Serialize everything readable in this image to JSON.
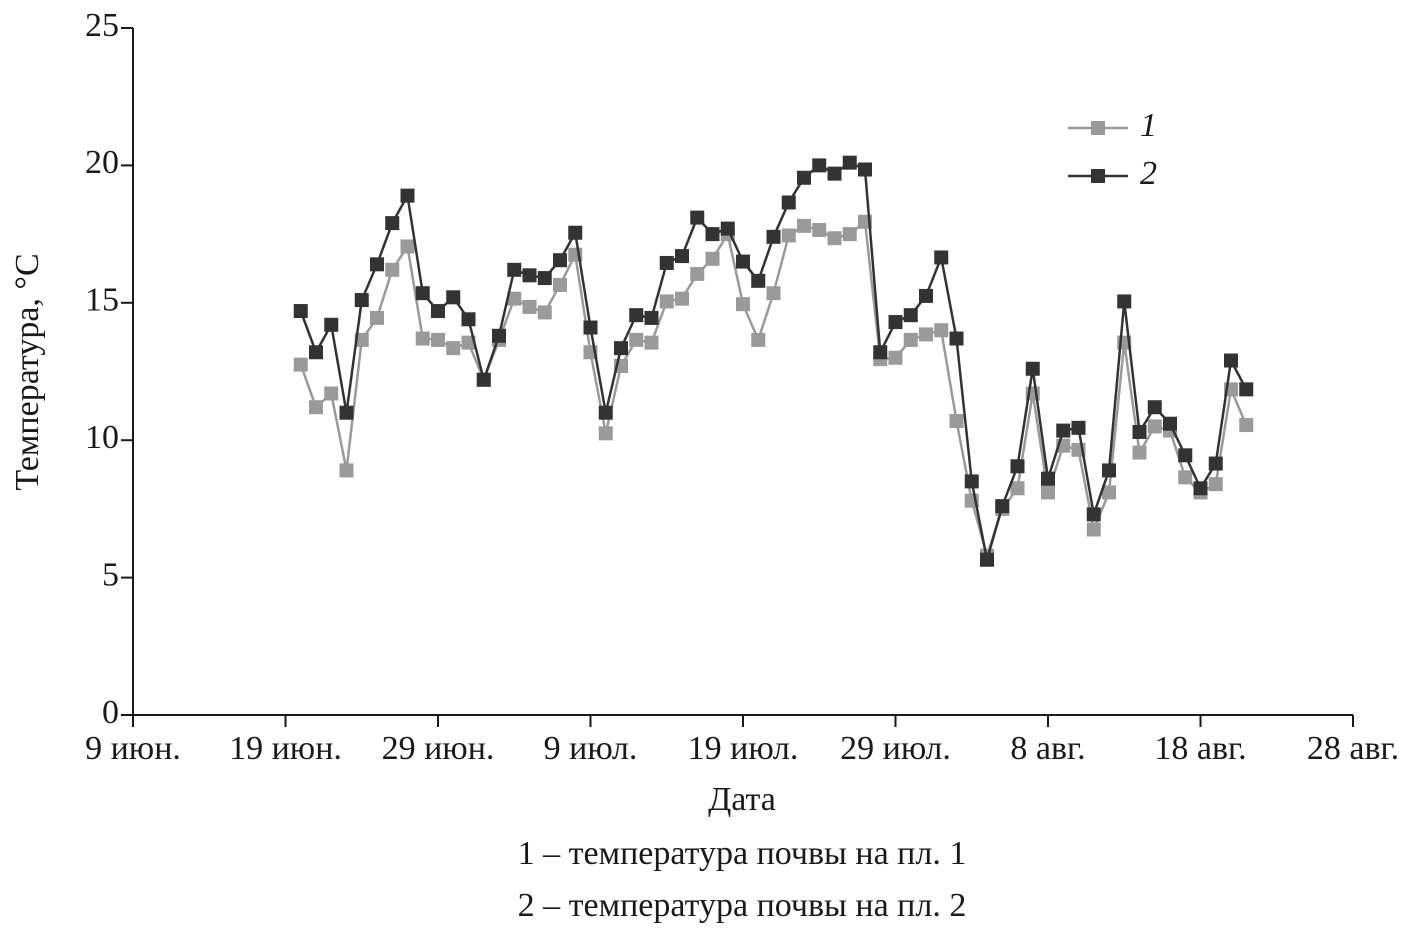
{
  "chart_data": {
    "type": "line",
    "xlabel": "Дата",
    "ylabel": "Температура, °C",
    "x": [
      11,
      12,
      13,
      14,
      15,
      16,
      17,
      18,
      19,
      20,
      21,
      22,
      23,
      24,
      25,
      26,
      27,
      28,
      29,
      30,
      31,
      32,
      33,
      34,
      35,
      36,
      37,
      38,
      39,
      40,
      41,
      42,
      43,
      44,
      45,
      46,
      47,
      48,
      49,
      50,
      51,
      52,
      53,
      54,
      55,
      56,
      57,
      58,
      59,
      60,
      61,
      62,
      63,
      64,
      65,
      66,
      67,
      68,
      69,
      70,
      71,
      72,
      73
    ],
    "series": [
      {
        "name": "1",
        "color": "#9a9a9a",
        "values": [
          12.75,
          11.2,
          11.7,
          8.9,
          13.65,
          14.45,
          16.2,
          17.05,
          13.7,
          13.65,
          13.35,
          13.55,
          12.2,
          13.65,
          15.15,
          14.85,
          14.65,
          15.65,
          16.75,
          13.2,
          10.25,
          12.7,
          13.65,
          13.55,
          15.05,
          15.15,
          16.05,
          16.6,
          17.5,
          14.95,
          13.65,
          15.35,
          17.45,
          17.8,
          17.65,
          17.35,
          17.5,
          17.95,
          12.95,
          13.0,
          13.65,
          13.85,
          14.0,
          10.7,
          7.8,
          5.8,
          7.5,
          8.25,
          11.7,
          8.1,
          9.8,
          9.65,
          6.75,
          8.1,
          13.55,
          9.55,
          10.5,
          10.35,
          8.65,
          8.1,
          8.4,
          11.85,
          10.55
        ]
      },
      {
        "name": "2",
        "color": "#333333",
        "values": [
          14.7,
          13.2,
          14.2,
          11.0,
          15.1,
          16.4,
          17.9,
          18.9,
          15.35,
          14.7,
          15.2,
          14.4,
          12.2,
          13.8,
          16.2,
          16.0,
          15.9,
          16.55,
          17.55,
          14.1,
          11.0,
          13.35,
          14.55,
          14.45,
          16.45,
          16.7,
          18.1,
          17.5,
          17.7,
          16.5,
          15.8,
          17.4,
          18.65,
          19.55,
          20.0,
          19.7,
          20.1,
          19.85,
          13.2,
          14.3,
          14.55,
          15.25,
          16.65,
          13.7,
          8.5,
          5.65,
          7.6,
          9.05,
          12.6,
          8.6,
          10.35,
          10.45,
          7.3,
          8.9,
          15.05,
          10.3,
          11.2,
          10.6,
          9.45,
          8.25,
          9.15,
          12.9,
          11.85
        ]
      }
    ],
    "xlim": [
      0,
      80
    ],
    "xticks": [
      {
        "value": 0,
        "label": "9 июн."
      },
      {
        "value": 10,
        "label": "19 июн."
      },
      {
        "value": 20,
        "label": "29 июн."
      },
      {
        "value": 30,
        "label": "9 июл."
      },
      {
        "value": 40,
        "label": "19 июл."
      },
      {
        "value": 50,
        "label": "29 июл."
      },
      {
        "value": 60,
        "label": "8 авг."
      },
      {
        "value": 70,
        "label": "18 авг."
      },
      {
        "value": 80,
        "label": "28 авг."
      }
    ],
    "ylim": [
      0,
      25
    ],
    "yticks": [
      0,
      5,
      10,
      15,
      20,
      25
    ],
    "grid": false,
    "legend": "upper right",
    "captions": [
      "1 – температура почвы на пл. 1",
      "2 – температура почвы на пл. 2"
    ]
  }
}
